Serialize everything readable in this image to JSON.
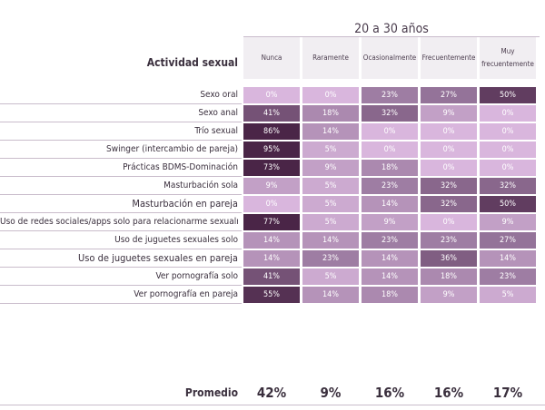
{
  "chart_data": {
    "type": "table",
    "group_title": "20 a 30 años",
    "row_header": "Actividad sexual",
    "columns": [
      "Nunca",
      "Raramente",
      "Ocasionalmente",
      "Frecuentemente",
      "Muy frecuentemente"
    ],
    "rows": [
      {
        "label": "Sexo oral",
        "values": [
          "0%",
          "0%",
          "23%",
          "27%",
          "50%"
        ]
      },
      {
        "label": "Sexo anal",
        "values": [
          "41%",
          "18%",
          "32%",
          "9%",
          "0%"
        ]
      },
      {
        "label": "Trío sexual",
        "values": [
          "86%",
          "14%",
          "0%",
          "0%",
          "0%"
        ]
      },
      {
        "label": "Swinger (intercambio de pareja)",
        "values": [
          "95%",
          "5%",
          "0%",
          "0%",
          "0%"
        ]
      },
      {
        "label": "Prácticas BDMS-Dominación",
        "values": [
          "73%",
          "9%",
          "18%",
          "0%",
          "0%"
        ]
      },
      {
        "label": "Masturbación sola",
        "values": [
          "9%",
          "5%",
          "23%",
          "32%",
          "32%"
        ]
      },
      {
        "label": "Masturbación en pareja",
        "values": [
          "0%",
          "5%",
          "14%",
          "32%",
          "50%"
        ]
      },
      {
        "label": "Uso de redes sociales/apps solo para relacionarme sexualmente",
        "values": [
          "77%",
          "5%",
          "9%",
          "0%",
          "9%"
        ]
      },
      {
        "label": "Uso de juguetes sexuales solo",
        "values": [
          "14%",
          "14%",
          "23%",
          "23%",
          "27%"
        ]
      },
      {
        "label": "Uso de juguetes sexuales en pareja",
        "values": [
          "14%",
          "23%",
          "14%",
          "36%",
          "14%"
        ]
      },
      {
        "label": "Ver pornografía solo",
        "values": [
          "41%",
          "5%",
          "14%",
          "18%",
          "23%"
        ]
      },
      {
        "label": "Ver pornografía en pareja",
        "values": [
          "55%",
          "14%",
          "18%",
          "9%",
          "5%"
        ]
      }
    ],
    "average_label": "Promedio",
    "averages": [
      "42%",
      "9%",
      "16%",
      "16%",
      "17%"
    ],
    "color_scale": {
      "low": "#d9b6dd",
      "mid": "#9b7aa0",
      "high": "#4a2547"
    }
  }
}
